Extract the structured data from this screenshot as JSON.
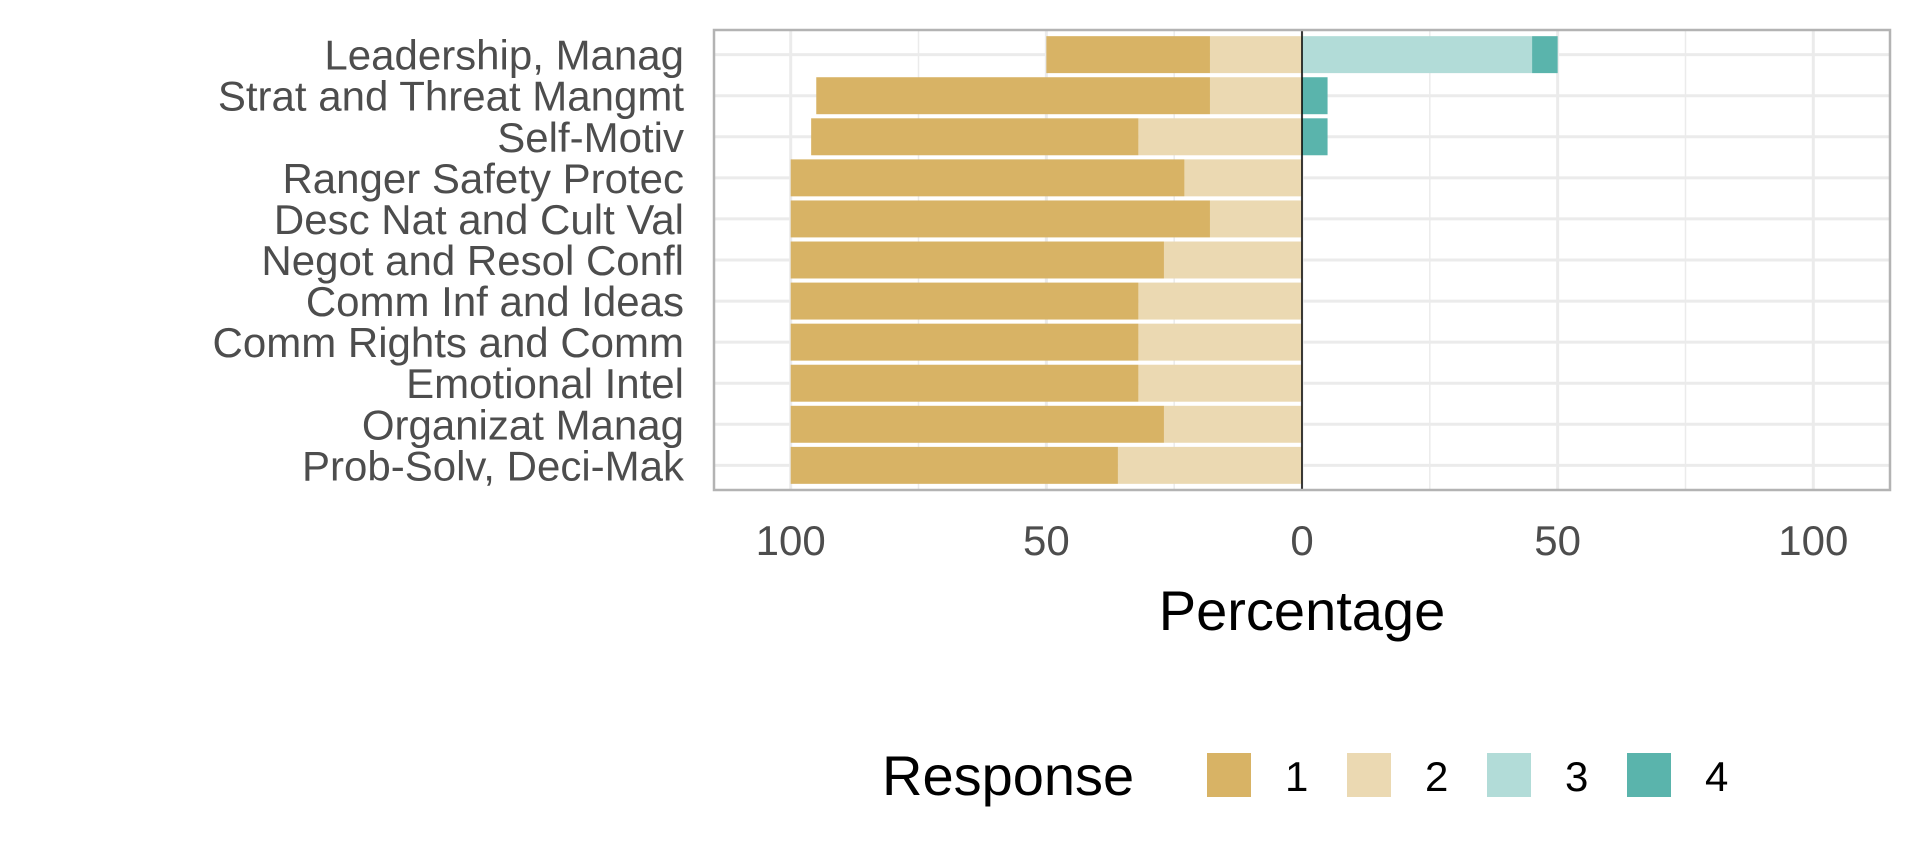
{
  "chart_data": {
    "type": "bar",
    "orientation": "horizontal-diverging",
    "xlabel": "Percentage",
    "xlim": [
      -115,
      115
    ],
    "x_ticks": [
      -100,
      -50,
      0,
      50,
      100
    ],
    "x_tick_labels": [
      "100",
      "50",
      "0",
      "50",
      "100"
    ],
    "grid": true,
    "categories": [
      "Leadership, Manag",
      "Strat and Threat Mangmt",
      "Self-Motiv",
      "Ranger Safety Protec",
      "Desc Nat and Cult Val",
      "Negot and Resol Confl",
      "Comm Inf and Ideas",
      "Comm Rights and Comm",
      "Emotional Intel",
      "Organizat Manag",
      "Prob-Solv, Deci-Mak"
    ],
    "series": [
      {
        "name": "1",
        "side": "negative",
        "color": "#D8B365",
        "values": [
          32,
          77,
          64,
          77,
          82,
          73,
          68,
          68,
          68,
          73,
          64
        ]
      },
      {
        "name": "2",
        "side": "negative",
        "color": "#EBD9B2",
        "values": [
          18,
          18,
          32,
          23,
          18,
          27,
          32,
          32,
          32,
          27,
          36
        ]
      },
      {
        "name": "3",
        "side": "positive",
        "color": "#B2DCD8",
        "values": [
          45,
          0,
          0,
          0,
          0,
          0,
          0,
          0,
          0,
          0,
          0
        ]
      },
      {
        "name": "4",
        "side": "positive",
        "color": "#5AB4AC",
        "values": [
          5,
          5,
          5,
          0,
          0,
          0,
          0,
          0,
          0,
          0,
          0
        ]
      }
    ],
    "legend": {
      "title": "Response",
      "position": "bottom",
      "items": [
        "1",
        "2",
        "3",
        "4"
      ]
    }
  }
}
